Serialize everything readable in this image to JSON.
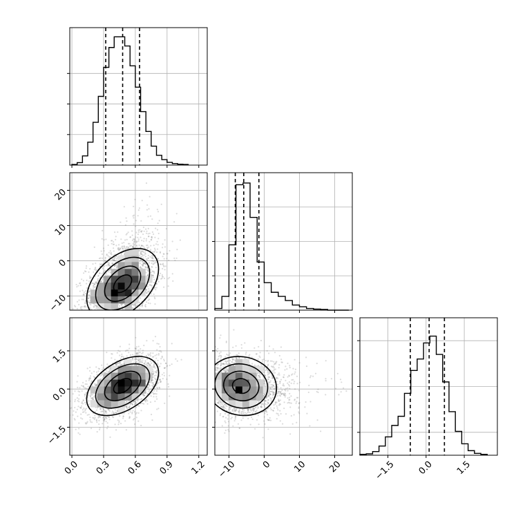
{
  "chart_data": {
    "type": "corner",
    "grid": true,
    "colors": {
      "line": "#000000",
      "grid": "#b0b0b0",
      "scatter": "#7f7f7f",
      "panel_bg": "#ffffff"
    },
    "parameters": [
      {
        "id": "p0",
        "range": [
          -0.02,
          1.28
        ],
        "ticks": [
          "0.0",
          "0.3",
          "0.6",
          "0.9",
          "1.2"
        ],
        "tick_values": [
          0.0,
          0.3,
          0.6,
          0.9,
          1.2
        ]
      },
      {
        "id": "p1",
        "range": [
          -14,
          25
        ],
        "ticks": [
          "-10",
          "0",
          "10",
          "20"
        ],
        "tick_values": [
          -10,
          0,
          10,
          20
        ]
      },
      {
        "id": "p2",
        "range": [
          -2.6,
          2.8
        ],
        "ticks": [
          "-1.5",
          "0.0",
          "1.5"
        ],
        "tick_values": [
          -1.5,
          0.0,
          1.5
        ]
      }
    ],
    "histograms": [
      {
        "param": "p0",
        "bin_edges": [
          0.0,
          0.05,
          0.1,
          0.15,
          0.2,
          0.25,
          0.3,
          0.35,
          0.4,
          0.45,
          0.5,
          0.55,
          0.6,
          0.65,
          0.7,
          0.75,
          0.8,
          0.85,
          0.9,
          0.95,
          1.0,
          1.05,
          1.1
        ],
        "counts": [
          2,
          8,
          30,
          75,
          140,
          225,
          320,
          385,
          420,
          420,
          390,
          325,
          255,
          175,
          110,
          62,
          32,
          18,
          9,
          5,
          3,
          2
        ],
        "quantiles": [
          0.32,
          0.48,
          0.64
        ],
        "ylim": [
          0,
          450
        ],
        "y_ticks": [
          100,
          200,
          300
        ]
      },
      {
        "param": "p1",
        "bin_edges": [
          -14,
          -12,
          -10,
          -8,
          -6,
          -4,
          -2,
          0,
          2,
          4,
          6,
          8,
          10,
          12,
          14,
          16,
          18,
          20,
          22,
          24
        ],
        "counts": [
          5,
          40,
          190,
          365,
          370,
          270,
          140,
          80,
          52,
          40,
          28,
          15,
          10,
          5,
          3,
          2,
          0,
          0,
          0
        ],
        "quantiles": [
          -8.2,
          -5.8,
          -1.5
        ],
        "ylim": [
          0,
          400
        ],
        "y_ticks": [
          100,
          200,
          300
        ]
      },
      {
        "param": "p2",
        "bin_edges": [
          -2.6,
          -2.35,
          -2.1,
          -1.85,
          -1.6,
          -1.35,
          -1.1,
          -0.85,
          -0.6,
          -0.35,
          -0.1,
          0.15,
          0.4,
          0.65,
          0.9,
          1.15,
          1.4,
          1.65,
          1.9,
          2.15,
          2.4
        ],
        "counts": [
          2,
          3,
          8,
          20,
          40,
          65,
          85,
          135,
          185,
          210,
          245,
          260,
          220,
          160,
          95,
          52,
          25,
          10,
          4,
          2
        ],
        "quantiles": [
          -0.62,
          0.12,
          0.72
        ],
        "ylim": [
          0,
          300
        ],
        "y_ticks": [
          50,
          150,
          250
        ]
      }
    ],
    "scatter": [
      {
        "x": "p0",
        "y": "p1",
        "center": [
          0.48,
          -6.5
        ],
        "sd": [
          0.17,
          5.0
        ],
        "rho": 0.42,
        "skew": 0.7,
        "n": 2600
      },
      {
        "x": "p0",
        "y": "p2",
        "center": [
          0.48,
          0.12
        ],
        "sd": [
          0.17,
          0.58
        ],
        "rho": 0.45,
        "skew": 0.0,
        "n": 2600
      },
      {
        "x": "p1",
        "y": "p2",
        "center": [
          -6.5,
          0.12
        ],
        "sd": [
          5.0,
          0.58
        ],
        "rho": -0.08,
        "skew": 0.7,
        "n": 2600
      }
    ]
  }
}
